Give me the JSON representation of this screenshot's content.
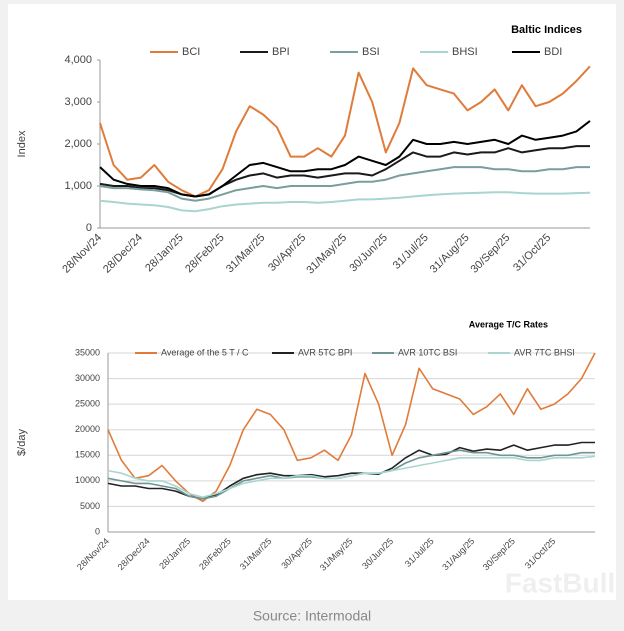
{
  "chart_data": [
    {
      "type": "line",
      "title": "Baltic Indices",
      "y_label": "Index",
      "categories": [
        "28/Nov/24",
        null,
        null,
        "28/Dec/24",
        null,
        null,
        "28/Jan/25",
        null,
        null,
        "28/Feb/25",
        null,
        null,
        "31/Mar/25",
        null,
        null,
        "30/Apr/25",
        null,
        null,
        "31/May/25",
        null,
        null,
        "30/Jun/25",
        null,
        null,
        "31/Jul/25",
        null,
        null,
        "31/Aug/25",
        null,
        null,
        "30/Sep/25",
        null,
        null,
        "31/Oct/25",
        null,
        null,
        null
      ],
      "series": [
        {
          "name": "BCI",
          "color": "#e07b39",
          "values": [
            2500,
            1500,
            1150,
            1200,
            1500,
            1100,
            900,
            750,
            900,
            1400,
            2300,
            2900,
            2700,
            2400,
            1700,
            1700,
            1900,
            1700,
            2200,
            3700,
            3000,
            1800,
            2500,
            3800,
            3400,
            3300,
            3200,
            2800,
            3000,
            3300,
            2800,
            3400,
            2900,
            3000,
            3200,
            3500,
            3850
          ]
        },
        {
          "name": "BPI",
          "color": "#1a1a1a",
          "values": [
            1050,
            1000,
            1000,
            950,
            950,
            900,
            800,
            750,
            800,
            1000,
            1150,
            1250,
            1300,
            1200,
            1250,
            1250,
            1200,
            1250,
            1300,
            1300,
            1250,
            1400,
            1600,
            1800,
            1700,
            1700,
            1800,
            1750,
            1800,
            1800,
            1900,
            1800,
            1850,
            1900,
            1900,
            1950,
            1950
          ]
        },
        {
          "name": "BSI",
          "color": "#7a9e9c",
          "values": [
            1000,
            950,
            950,
            920,
            900,
            850,
            700,
            650,
            700,
            800,
            900,
            950,
            1000,
            950,
            1000,
            1000,
            1000,
            1000,
            1050,
            1100,
            1100,
            1150,
            1250,
            1300,
            1350,
            1400,
            1450,
            1450,
            1450,
            1400,
            1400,
            1350,
            1350,
            1400,
            1400,
            1450,
            1450
          ]
        },
        {
          "name": "BHSI",
          "color": "#a8d5cf",
          "values": [
            650,
            620,
            580,
            560,
            540,
            500,
            420,
            400,
            450,
            520,
            560,
            580,
            600,
            600,
            620,
            620,
            600,
            620,
            650,
            680,
            680,
            700,
            720,
            750,
            780,
            800,
            820,
            830,
            840,
            850,
            850,
            830,
            820,
            820,
            820,
            830,
            840
          ]
        },
        {
          "name": "BDI",
          "color": "#000000",
          "values": [
            1450,
            1150,
            1050,
            1000,
            1000,
            950,
            800,
            750,
            800,
            1000,
            1250,
            1500,
            1550,
            1450,
            1350,
            1350,
            1400,
            1400,
            1500,
            1700,
            1600,
            1500,
            1700,
            2100,
            2000,
            2000,
            2050,
            2000,
            2050,
            2100,
            2000,
            2200,
            2100,
            2150,
            2200,
            2300,
            2550
          ]
        }
      ],
      "ylim": [
        0,
        4000
      ],
      "yticks": [
        0,
        {
          "value": 1000,
          "label": "1,000"
        },
        {
          "value": 2000,
          "label": "2,000"
        },
        {
          "value": 3000,
          "label": "3,000"
        },
        {
          "value": 4000,
          "label": "4,000"
        }
      ],
      "grid": false
    },
    {
      "type": "line",
      "title": "Average T/C Rates",
      "y_label": "$/day",
      "categories": [
        "28/Nov/24",
        null,
        null,
        "28/Dec/24",
        null,
        null,
        "28/Jan/25",
        null,
        null,
        "28/Feb/25",
        null,
        null,
        "31/Mar/25",
        null,
        null,
        "30/Apr/25",
        null,
        null,
        "31/May/25",
        null,
        null,
        "30/Jun/25",
        null,
        null,
        "31/Jul/25",
        null,
        null,
        "31/Aug/25",
        null,
        null,
        "30/Sep/25",
        null,
        null,
        "31/Oct/25",
        null,
        null,
        null
      ],
      "series": [
        {
          "name": "Average of the 5 T / C",
          "color": "#e07b39",
          "values": [
            20000,
            14000,
            10500,
            11000,
            13000,
            10000,
            7500,
            6000,
            8000,
            13000,
            20000,
            24000,
            23000,
            20000,
            14000,
            14500,
            16000,
            14000,
            19000,
            31000,
            25000,
            15000,
            21000,
            32000,
            28000,
            27000,
            26000,
            23000,
            24500,
            27000,
            23000,
            28000,
            24000,
            25000,
            27000,
            30000,
            35000
          ]
        },
        {
          "name": "AVR 5TC BPI",
          "color": "#222222",
          "values": [
            9500,
            9000,
            9000,
            8500,
            8500,
            8000,
            7000,
            6500,
            7200,
            9000,
            10500,
            11200,
            11500,
            11000,
            11000,
            11200,
            10800,
            11000,
            11500,
            11500,
            11300,
            12500,
            14500,
            16000,
            15000,
            15200,
            16500,
            15800,
            16200,
            16000,
            17000,
            16000,
            16500,
            17000,
            17000,
            17500,
            17500
          ]
        },
        {
          "name": "AVR 10TC BSI",
          "color": "#6f9694",
          "values": [
            10500,
            10000,
            9500,
            9500,
            9000,
            8500,
            7000,
            6500,
            7000,
            8500,
            10000,
            10500,
            11000,
            10500,
            10800,
            10800,
            10500,
            10500,
            11000,
            11500,
            11500,
            12000,
            13500,
            14500,
            15000,
            15500,
            16000,
            15500,
            15500,
            15000,
            15000,
            14500,
            14500,
            15000,
            15000,
            15500,
            15500
          ]
        },
        {
          "name": "AVR 7TC BHSI",
          "color": "#a9d6d0",
          "values": [
            12000,
            11500,
            10500,
            10000,
            10000,
            9000,
            7500,
            6800,
            7500,
            8500,
            9500,
            10000,
            10500,
            10500,
            11000,
            11000,
            10500,
            10500,
            11000,
            11500,
            11500,
            12000,
            12500,
            13000,
            13500,
            14000,
            14500,
            14500,
            14500,
            14500,
            14500,
            14000,
            14000,
            14500,
            14500,
            14500,
            14800
          ]
        }
      ],
      "ylim": [
        0,
        35000
      ],
      "yticks": [
        0,
        5000,
        10000,
        15000,
        20000,
        25000,
        30000,
        35000
      ],
      "grid": true
    }
  ],
  "source": "Source: Intermodal",
  "watermark": "FastBull"
}
